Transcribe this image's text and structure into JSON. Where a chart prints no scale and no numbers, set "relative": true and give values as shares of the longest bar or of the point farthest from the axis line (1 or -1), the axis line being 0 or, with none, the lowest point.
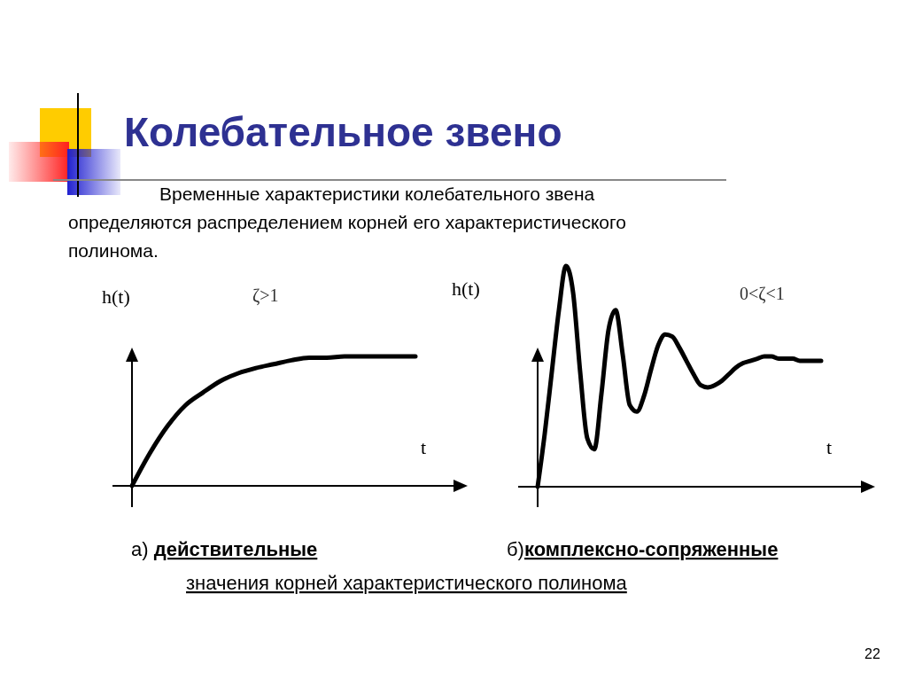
{
  "chart_data": [
    {
      "type": "line",
      "title": "Колебательное звено",
      "subtitle": "Временные характеристики колебательного звена определяются распределением корней его характеристического полинома.",
      "ylabel": "h(t)",
      "xlabel": "t",
      "relative": true,
      "categories": [
        null,
        null,
        null,
        null,
        null,
        null,
        null,
        null,
        null,
        null,
        null,
        null,
        null,
        null,
        null,
        null,
        null
      ],
      "series": [
        {
          "color": "#000000",
          "values": [
            0,
            0.25,
            0.46,
            0.62,
            0.72,
            0.81,
            0.87,
            0.91,
            0.94,
            0.97,
            0.99,
            0.99,
            1,
            1,
            1,
            1,
            1
          ]
        }
      ],
      "annotations": [
        "ζ>1",
        "а) действительные"
      ]
    },
    {
      "type": "line",
      "ylabel": "h(t)",
      "xlabel": "t",
      "relative": true,
      "categories": [
        null,
        null,
        null,
        null,
        null,
        null,
        null,
        null,
        null,
        null,
        null,
        null,
        null,
        null,
        null,
        null,
        null,
        null,
        null,
        null,
        null,
        null,
        null,
        null,
        null,
        null,
        null,
        null,
        null,
        null,
        null,
        null,
        null,
        null,
        null,
        null,
        null,
        null,
        null,
        null,
        null
      ],
      "series": [
        {
          "color": "#000000",
          "values": [
            0,
            0.24,
            0.52,
            0.8,
            1.0,
            0.88,
            0.52,
            0.22,
            0.17,
            0.42,
            0.71,
            0.8,
            0.6,
            0.37,
            0.34,
            0.41,
            0.53,
            0.64,
            0.69,
            0.68,
            0.63,
            0.57,
            0.51,
            0.46,
            0.45,
            0.46,
            0.48,
            0.51,
            0.54,
            0.56,
            0.57,
            0.58,
            0.59,
            0.59,
            0.58,
            0.58,
            0.58,
            0.57,
            0.57,
            0.57,
            0.57
          ]
        }
      ],
      "annotations": [
        "0<ζ<1",
        "б)комплексно-сопряженные",
        "значения корней характеристического полинома",
        "22"
      ]
    }
  ]
}
